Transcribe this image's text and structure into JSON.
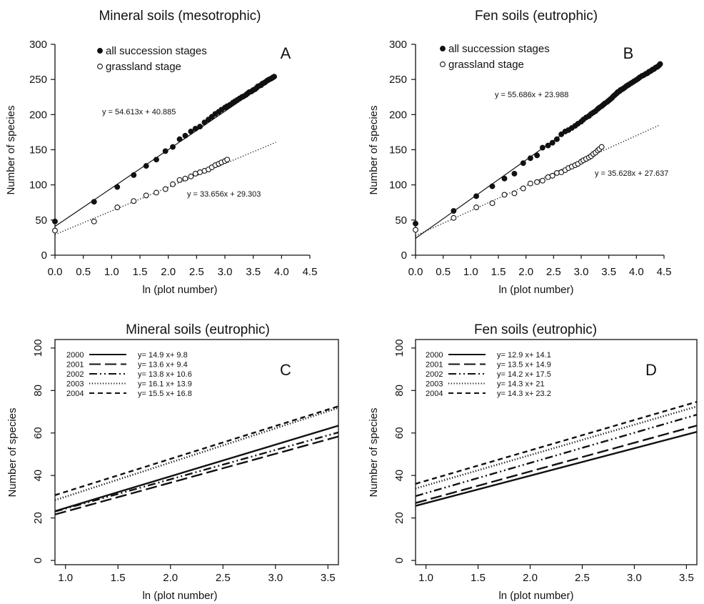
{
  "chart_data": [
    {
      "panel": "A",
      "type": "scatter",
      "title": "Mineral soils (mesotrophic)",
      "panel_label": "A",
      "xlabel": "ln (plot number)",
      "ylabel": "Number of species",
      "xlim": [
        0,
        4.5
      ],
      "ylim": [
        0,
        300
      ],
      "xticks": [
        "0.0",
        "0.5",
        "1.0",
        "1.5",
        "2.0",
        "2.5",
        "3.0",
        "3.5",
        "4.0",
        "4.5"
      ],
      "yticks": [
        "0",
        "50",
        "100",
        "150",
        "200",
        "250",
        "300"
      ],
      "legend_position": "top-left",
      "series": [
        {
          "name": "all succession stages",
          "marker": "filled-circle",
          "x": [
            0.0,
            0.69,
            1.1,
            1.39,
            1.61,
            1.79,
            1.95,
            2.08,
            2.2,
            2.3,
            2.4,
            2.48,
            2.56,
            2.64,
            2.71,
            2.77,
            2.83,
            2.89,
            2.94,
            3.0,
            3.04,
            3.09,
            3.14,
            3.18,
            3.22,
            3.26,
            3.3,
            3.33,
            3.37,
            3.4,
            3.43,
            3.47,
            3.5,
            3.53,
            3.56,
            3.58,
            3.61,
            3.64,
            3.66,
            3.69,
            3.71,
            3.74,
            3.76,
            3.78,
            3.81,
            3.83,
            3.85,
            3.87
          ],
          "y": [
            48,
            76,
            97,
            114,
            127,
            136,
            148,
            154,
            165,
            170,
            176,
            180,
            183,
            189,
            193,
            197,
            201,
            204,
            207,
            210,
            212,
            214,
            217,
            219,
            221,
            223,
            225,
            226,
            228,
            230,
            232,
            233,
            235,
            236,
            238,
            240,
            241,
            242,
            244,
            245,
            246,
            248,
            249,
            250,
            251,
            252,
            253,
            254
          ]
        },
        {
          "name": "grassland stage",
          "marker": "open-circle",
          "x": [
            0.0,
            0.69,
            1.1,
            1.39,
            1.61,
            1.79,
            1.95,
            2.08,
            2.2,
            2.3,
            2.4,
            2.48,
            2.56,
            2.64,
            2.71,
            2.77,
            2.83,
            2.89,
            2.94,
            3.0,
            3.04
          ],
          "y": [
            35,
            48,
            68,
            77,
            85,
            89,
            94,
            101,
            107,
            109,
            112,
            116,
            118,
            120,
            122,
            125,
            128,
            130,
            132,
            134,
            136
          ]
        }
      ],
      "fits": [
        {
          "series": "all succession stages",
          "equation": "y = 54.613x + 40.885",
          "slope": 54.613,
          "intercept": 40.885,
          "x_range": [
            0,
            3.87
          ],
          "line_style": "solid"
        },
        {
          "series": "grassland stage",
          "equation": "y = 33.656x + 29.303",
          "slope": 33.656,
          "intercept": 29.303,
          "x_range": [
            0,
            3.9
          ],
          "line_style": "dotted"
        }
      ]
    },
    {
      "panel": "B",
      "type": "scatter",
      "title": "Fen soils (eutrophic)",
      "panel_label": "B",
      "xlabel": "ln (plot number)",
      "ylabel": "Number of species",
      "xlim": [
        0,
        4.5
      ],
      "ylim": [
        0,
        300
      ],
      "xticks": [
        "0.0",
        "0.5",
        "1.0",
        "1.5",
        "2.0",
        "2.5",
        "3.0",
        "3.5",
        "4.0",
        "4.5"
      ],
      "yticks": [
        "0",
        "50",
        "100",
        "150",
        "200",
        "250",
        "300"
      ],
      "legend_position": "top-left",
      "series": [
        {
          "name": "all succession stages",
          "marker": "filled-circle",
          "x": [
            0.0,
            0.69,
            1.1,
            1.39,
            1.61,
            1.79,
            1.95,
            2.08,
            2.2,
            2.3,
            2.4,
            2.48,
            2.56,
            2.64,
            2.71,
            2.77,
            2.83,
            2.89,
            2.94,
            3.0,
            3.04,
            3.09,
            3.14,
            3.18,
            3.22,
            3.26,
            3.3,
            3.33,
            3.37,
            3.4,
            3.43,
            3.47,
            3.5,
            3.53,
            3.56,
            3.58,
            3.61,
            3.64,
            3.66,
            3.69,
            3.71,
            3.74,
            3.76,
            3.78,
            3.81,
            3.83,
            3.85,
            3.87,
            3.91,
            3.95,
            3.99,
            4.03,
            4.06,
            4.1,
            4.13,
            4.17,
            4.2,
            4.23,
            4.26,
            4.29,
            4.32,
            4.35,
            4.38,
            4.41,
            4.43
          ],
          "y": [
            45,
            63,
            84,
            98,
            109,
            116,
            131,
            138,
            142,
            153,
            156,
            160,
            165,
            172,
            176,
            178,
            181,
            184,
            187,
            190,
            193,
            196,
            198,
            201,
            203,
            205,
            208,
            210,
            212,
            214,
            216,
            218,
            220,
            222,
            224,
            226,
            228,
            230,
            232,
            233,
            235,
            236,
            237,
            238,
            240,
            241,
            242,
            243,
            245,
            247,
            249,
            251,
            253,
            255,
            256,
            258,
            259,
            261,
            262,
            264,
            265,
            267,
            268,
            270,
            272
          ]
        },
        {
          "name": "grassland stage",
          "marker": "open-circle",
          "x": [
            0.0,
            0.69,
            1.1,
            1.39,
            1.61,
            1.79,
            1.95,
            2.08,
            2.2,
            2.3,
            2.4,
            2.48,
            2.56,
            2.64,
            2.71,
            2.77,
            2.83,
            2.89,
            2.94,
            3.0,
            3.04,
            3.09,
            3.14,
            3.18,
            3.22,
            3.26,
            3.3,
            3.33,
            3.37
          ],
          "y": [
            36,
            53,
            68,
            74,
            86,
            88,
            95,
            102,
            104,
            106,
            111,
            113,
            117,
            118,
            121,
            124,
            126,
            128,
            130,
            133,
            135,
            137,
            139,
            141,
            144,
            146,
            149,
            151,
            154
          ]
        }
      ],
      "fits": [
        {
          "series": "all succession stages",
          "equation": "y = 55.686x + 23.988",
          "slope": 55.686,
          "intercept": 23.988,
          "x_range": [
            0,
            4.43
          ],
          "line_style": "solid"
        },
        {
          "series": "grassland stage",
          "equation": "y = 35.628x + 27.637",
          "slope": 35.628,
          "intercept": 27.637,
          "x_range": [
            0,
            4.4
          ],
          "line_style": "dotted"
        }
      ]
    },
    {
      "panel": "C",
      "type": "line",
      "title": "Mineral soils (eutrophic)",
      "panel_label": "C",
      "xlabel": "ln (plot number)",
      "ylabel": "Number of species",
      "xlim": [
        0.9,
        3.6
      ],
      "ylim": [
        -2,
        104
      ],
      "xticks": [
        "1.0",
        "1.5",
        "2.0",
        "2.5",
        "3.0",
        "3.5"
      ],
      "yticks": [
        "0",
        "20",
        "40",
        "60",
        "80",
        "100"
      ],
      "legend_position": "top-left",
      "series": [
        {
          "name": "2000",
          "equation": "y= 14.9 x+ 9.8",
          "slope": 14.9,
          "intercept": 9.8,
          "line_style": "solid"
        },
        {
          "name": "2001",
          "equation": "y= 13.6 x+ 9.4",
          "slope": 13.6,
          "intercept": 9.4,
          "line_style": "long-dash"
        },
        {
          "name": "2002",
          "equation": "y= 13.8 x+ 10.6",
          "slope": 13.8,
          "intercept": 10.6,
          "line_style": "dash-dot-dot"
        },
        {
          "name": "2003",
          "equation": "y= 16.1 x+ 13.9",
          "slope": 16.1,
          "intercept": 13.9,
          "line_style": "dotted"
        },
        {
          "name": "2004",
          "equation": "y= 15.5 x+ 16.8",
          "slope": 15.5,
          "intercept": 16.8,
          "line_style": "dashed"
        }
      ]
    },
    {
      "panel": "D",
      "type": "line",
      "title": "Fen soils (eutrophic)",
      "panel_label": "D",
      "xlabel": "ln (plot number)",
      "ylabel": "Number of species",
      "xlim": [
        0.9,
        3.6
      ],
      "ylim": [
        -2,
        104
      ],
      "xticks": [
        "1.0",
        "1.5",
        "2.0",
        "2.5",
        "3.0",
        "3.5"
      ],
      "yticks": [
        "0",
        "20",
        "40",
        "60",
        "80",
        "100"
      ],
      "legend_position": "top-left",
      "series": [
        {
          "name": "2000",
          "equation": "y= 12.9 x+ 14.1",
          "slope": 12.9,
          "intercept": 14.1,
          "line_style": "solid"
        },
        {
          "name": "2001",
          "equation": "y= 13.5 x+ 14.9",
          "slope": 13.5,
          "intercept": 14.9,
          "line_style": "long-dash"
        },
        {
          "name": "2002",
          "equation": "y= 14.2 x+ 17.5",
          "slope": 14.2,
          "intercept": 17.5,
          "line_style": "dash-dot-dot"
        },
        {
          "name": "2003",
          "equation": "y= 14.3 x+ 21",
          "slope": 14.3,
          "intercept": 21,
          "line_style": "dotted"
        },
        {
          "name": "2004",
          "equation": "y= 14.3 x+ 23.2",
          "slope": 14.3,
          "intercept": 23.2,
          "line_style": "dashed"
        }
      ]
    }
  ]
}
